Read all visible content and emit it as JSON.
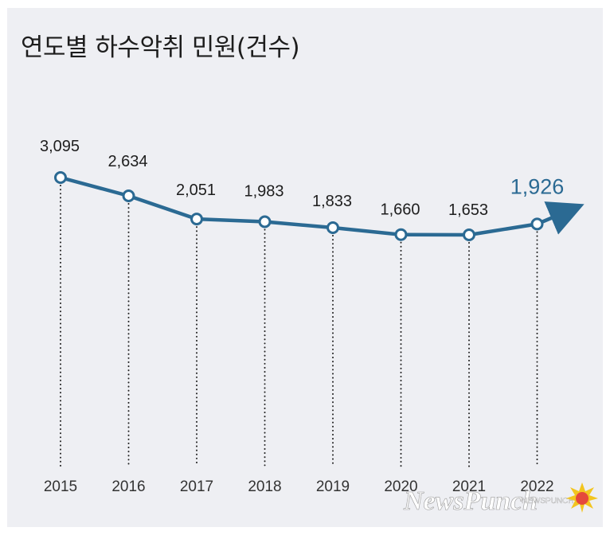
{
  "chart_data": {
    "type": "line",
    "title": "연도별 하수악취 민원(건수)",
    "categories": [
      "2015",
      "2016",
      "2017",
      "2018",
      "2019",
      "2020",
      "2021",
      "2022"
    ],
    "values": [
      3095,
      2634,
      2051,
      1983,
      1833,
      1660,
      1653,
      1926
    ],
    "value_labels": [
      "3,095",
      "2,634",
      "2,051",
      "1,983",
      "1,833",
      "1,660",
      "1,653",
      "1,926"
    ],
    "xlabel": "",
    "ylabel": "",
    "grid": false,
    "legend": "none",
    "colors": {
      "line": "#2b6a93",
      "highlight_label": "#2b6a93",
      "background": "#eeeff3",
      "dotted_guides": "#222222"
    }
  },
  "watermark": {
    "brand": "NewsPunch",
    "small_text": "NEWSPUNCH"
  }
}
